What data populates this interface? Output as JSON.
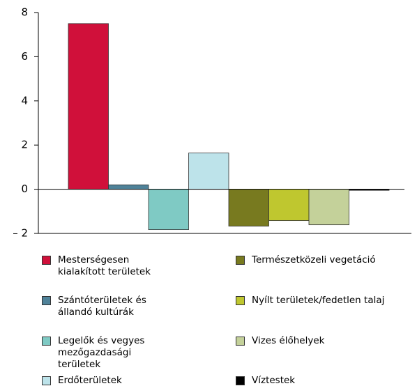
{
  "chart_data": {
    "type": "bar",
    "series": [
      {
        "name": "Mesterségesen kialakított területek",
        "color": "#d0103a",
        "values": [
          7.5
        ]
      },
      {
        "name": "Szántóterületek és állandó kultúrák",
        "color": "#4f8299",
        "values": [
          0.2
        ]
      },
      {
        "name": "Legelők és vegyes mezőgazdasági területek",
        "color": "#7fcac4",
        "values": [
          -1.83
        ]
      },
      {
        "name": "Erdőterületek",
        "color": "#bde3ea",
        "values": [
          1.64
        ]
      },
      {
        "name": "Természetközeli vegetáció",
        "color": "#787a1f",
        "values": [
          -1.67
        ]
      },
      {
        "name": "Nyílt területek/fedetlen talaj",
        "color": "#bfc72f",
        "values": [
          -1.42
        ]
      },
      {
        "name": "Vizes élőhelyek",
        "color": "#c4d19a",
        "values": [
          -1.61
        ]
      },
      {
        "name": "Víztestek",
        "color": "#000000",
        "values": [
          -0.05
        ]
      }
    ],
    "ylim": [
      -2,
      8
    ],
    "yticks": [
      {
        "value": -2,
        "label": "– 2"
      },
      0,
      2,
      4,
      6,
      8
    ],
    "grid": false
  }
}
